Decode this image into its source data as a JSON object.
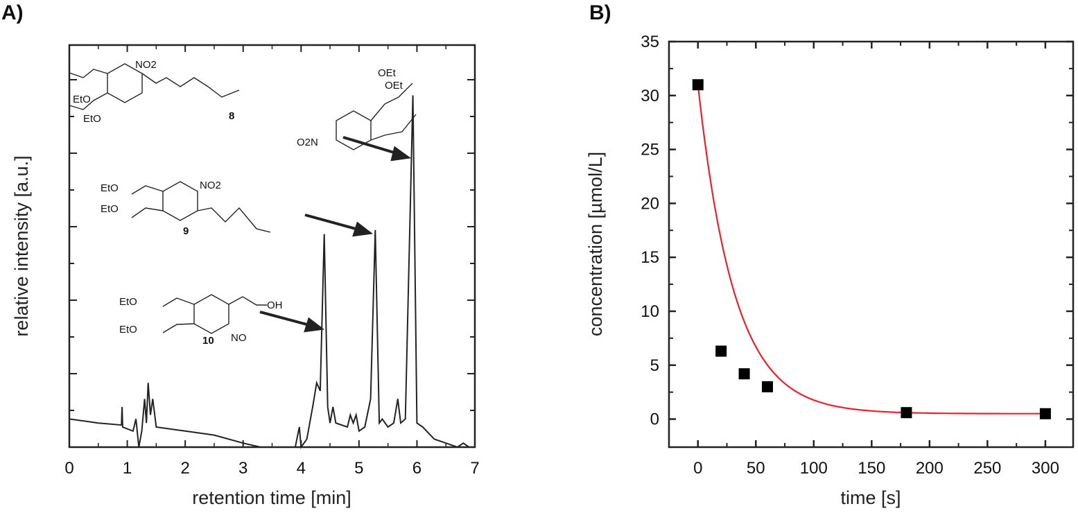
{
  "chart_data": [
    {
      "panel_label": "A)",
      "type": "line",
      "xlabel": "retention time [min]",
      "ylabel": "relative intensity [a.u.]",
      "xlim": [
        0,
        7
      ],
      "ylim": [
        0,
        1
      ],
      "x_ticks": [
        "0",
        "1",
        "2",
        "3",
        "4",
        "5",
        "6",
        "7"
      ],
      "y_tick_labels": "none",
      "grid": false,
      "line_color": "#222222",
      "trace": [
        [
          0,
          0.07
        ],
        [
          0.5,
          0.06
        ],
        [
          0.9,
          0.055
        ],
        [
          0.91,
          0.1
        ],
        [
          0.92,
          0.05
        ],
        [
          1.1,
          0.04
        ],
        [
          1.15,
          0.07
        ],
        [
          1.2,
          0.0
        ],
        [
          1.25,
          0.04
        ],
        [
          1.3,
          0.12
        ],
        [
          1.33,
          0.06
        ],
        [
          1.36,
          0.16
        ],
        [
          1.4,
          0.08
        ],
        [
          1.44,
          0.12
        ],
        [
          1.5,
          0.05
        ],
        [
          2,
          0.04
        ],
        [
          2.5,
          0.03
        ],
        [
          3,
          0.01
        ],
        [
          3.3,
          0.0
        ],
        [
          3.9,
          0.0
        ],
        [
          3.97,
          0.05
        ],
        [
          4.0,
          0.0
        ],
        [
          4.1,
          0.02
        ],
        [
          4.2,
          0.1
        ],
        [
          4.27,
          0.16
        ],
        [
          4.33,
          0.14
        ],
        [
          4.4,
          0.53
        ],
        [
          4.46,
          0.1
        ],
        [
          4.5,
          0.06
        ],
        [
          4.55,
          0.1
        ],
        [
          4.6,
          0.06
        ],
        [
          4.8,
          0.05
        ],
        [
          4.85,
          0.08
        ],
        [
          4.9,
          0.06
        ],
        [
          4.95,
          0.08
        ],
        [
          5.0,
          0.04
        ],
        [
          5.1,
          0.05
        ],
        [
          5.2,
          0.12
        ],
        [
          5.28,
          0.54
        ],
        [
          5.35,
          0.06
        ],
        [
          5.4,
          0.07
        ],
        [
          5.5,
          0.05
        ],
        [
          5.6,
          0.06
        ],
        [
          5.67,
          0.12
        ],
        [
          5.72,
          0.06
        ],
        [
          5.8,
          0.07
        ],
        [
          5.93,
          0.875
        ],
        [
          6.0,
          0.06
        ],
        [
          6.1,
          0.05
        ],
        [
          6.3,
          0.02
        ],
        [
          6.5,
          0.01
        ],
        [
          6.7,
          0.0
        ],
        [
          6.8,
          0.01
        ],
        [
          6.9,
          0.0
        ]
      ],
      "annotations": [
        {
          "compound": "8",
          "peak_time": 5.93,
          "groups": [
            "NO2",
            "EtO",
            "EtO",
            "OEt",
            "OEt",
            "O2N"
          ]
        },
        {
          "compound": "9",
          "peak_time": 5.28,
          "groups": [
            "NO2",
            "EtO",
            "EtO"
          ]
        },
        {
          "compound": "10",
          "peak_time": 4.4,
          "groups": [
            "OH",
            "NO",
            "EtO",
            "EtO"
          ]
        }
      ]
    },
    {
      "panel_label": "B)",
      "type": "scatter",
      "xlabel": "time [s]",
      "ylabel": "concentration [µmol/L]",
      "xlim": [
        -25,
        324
      ],
      "ylim": [
        -2.6,
        35
      ],
      "x_ticks": [
        "0",
        "50",
        "100",
        "150",
        "200",
        "250",
        "300"
      ],
      "y_ticks": [
        "0",
        "5",
        "10",
        "15",
        "20",
        "25",
        "30",
        "35"
      ],
      "grid": false,
      "marker": "square",
      "marker_color": "#000000",
      "points": [
        [
          0,
          31.0
        ],
        [
          20,
          6.3
        ],
        [
          40,
          4.2
        ],
        [
          60,
          3.0
        ],
        [
          180,
          0.6
        ],
        [
          300,
          0.5
        ]
      ],
      "fit": {
        "model": "exponential decay",
        "y0": 0.5,
        "A": 30.5,
        "tau": 31.4,
        "color": "#e8202a"
      }
    }
  ]
}
